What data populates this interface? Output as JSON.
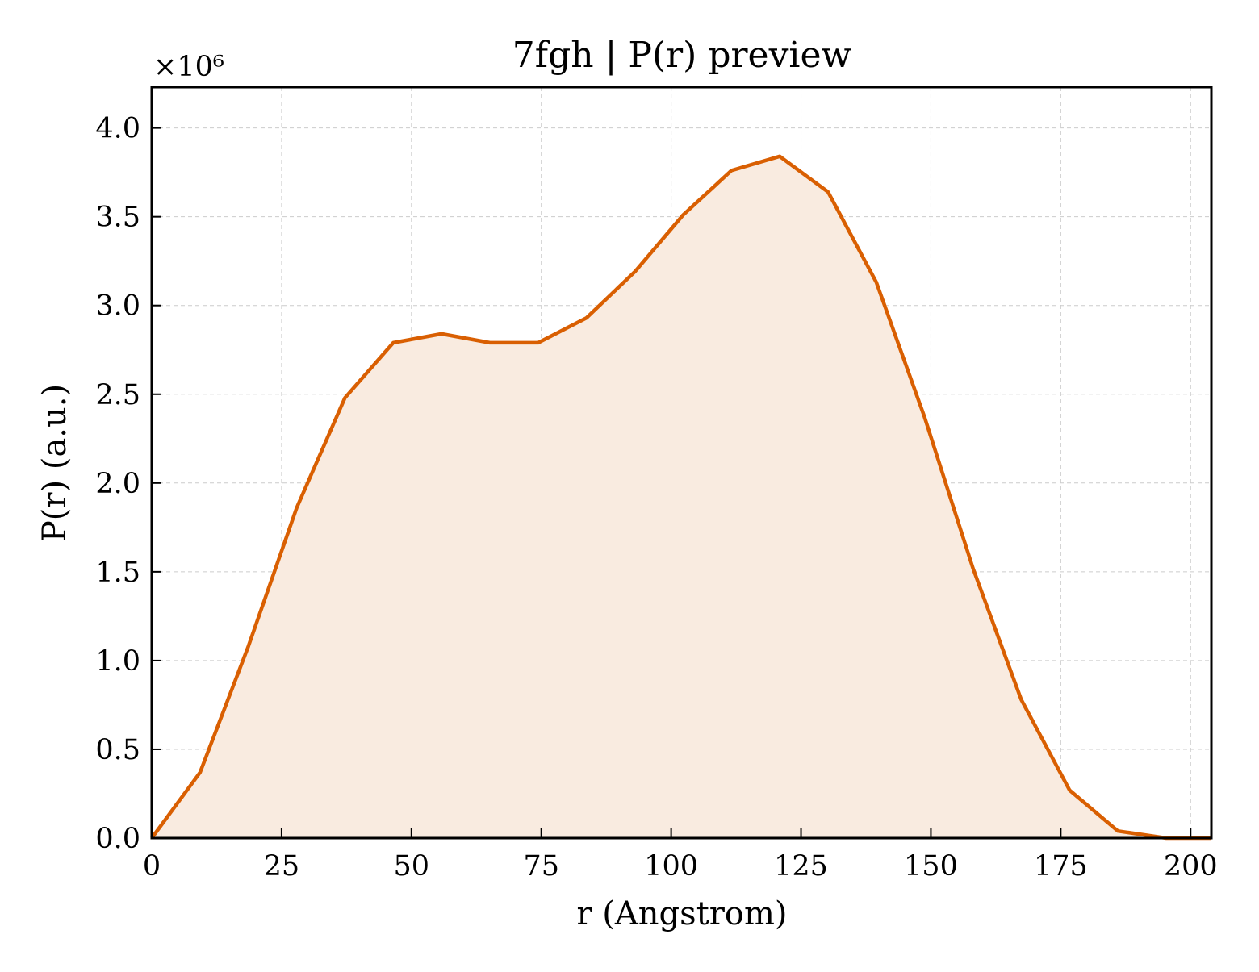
{
  "chart_data": {
    "type": "area",
    "title": "7fgh | P(r) preview",
    "xlabel": "r (Angstrom)",
    "ylabel": "P(r) (a.u.)",
    "y_multiplier_label": "×10⁶",
    "xlim": [
      0,
      204
    ],
    "ylim": [
      0,
      4.23
    ],
    "x_ticks": [
      0,
      25,
      50,
      75,
      100,
      125,
      150,
      175,
      200
    ],
    "y_ticks": [
      0.0,
      0.5,
      1.0,
      1.5,
      2.0,
      2.5,
      3.0,
      3.5,
      4.0
    ],
    "grid": true,
    "line_color": "#d95f02",
    "fill_color": "#f9ebe0",
    "series": [
      {
        "x": [
          0,
          9.3,
          18.6,
          27.9,
          37.2,
          46.5,
          55.8,
          65.1,
          74.4,
          83.7,
          93.0,
          102.3,
          111.6,
          120.9,
          130.2,
          139.5,
          148.8,
          158.1,
          167.4,
          176.7,
          186.0,
          195.3,
          204
        ],
        "values": [
          0.0,
          0.37,
          1.08,
          1.86,
          2.48,
          2.79,
          2.84,
          2.79,
          2.79,
          2.93,
          3.19,
          3.51,
          3.76,
          3.84,
          3.64,
          3.13,
          2.37,
          1.52,
          0.78,
          0.27,
          0.04,
          0.0,
          0.0
        ]
      }
    ]
  }
}
